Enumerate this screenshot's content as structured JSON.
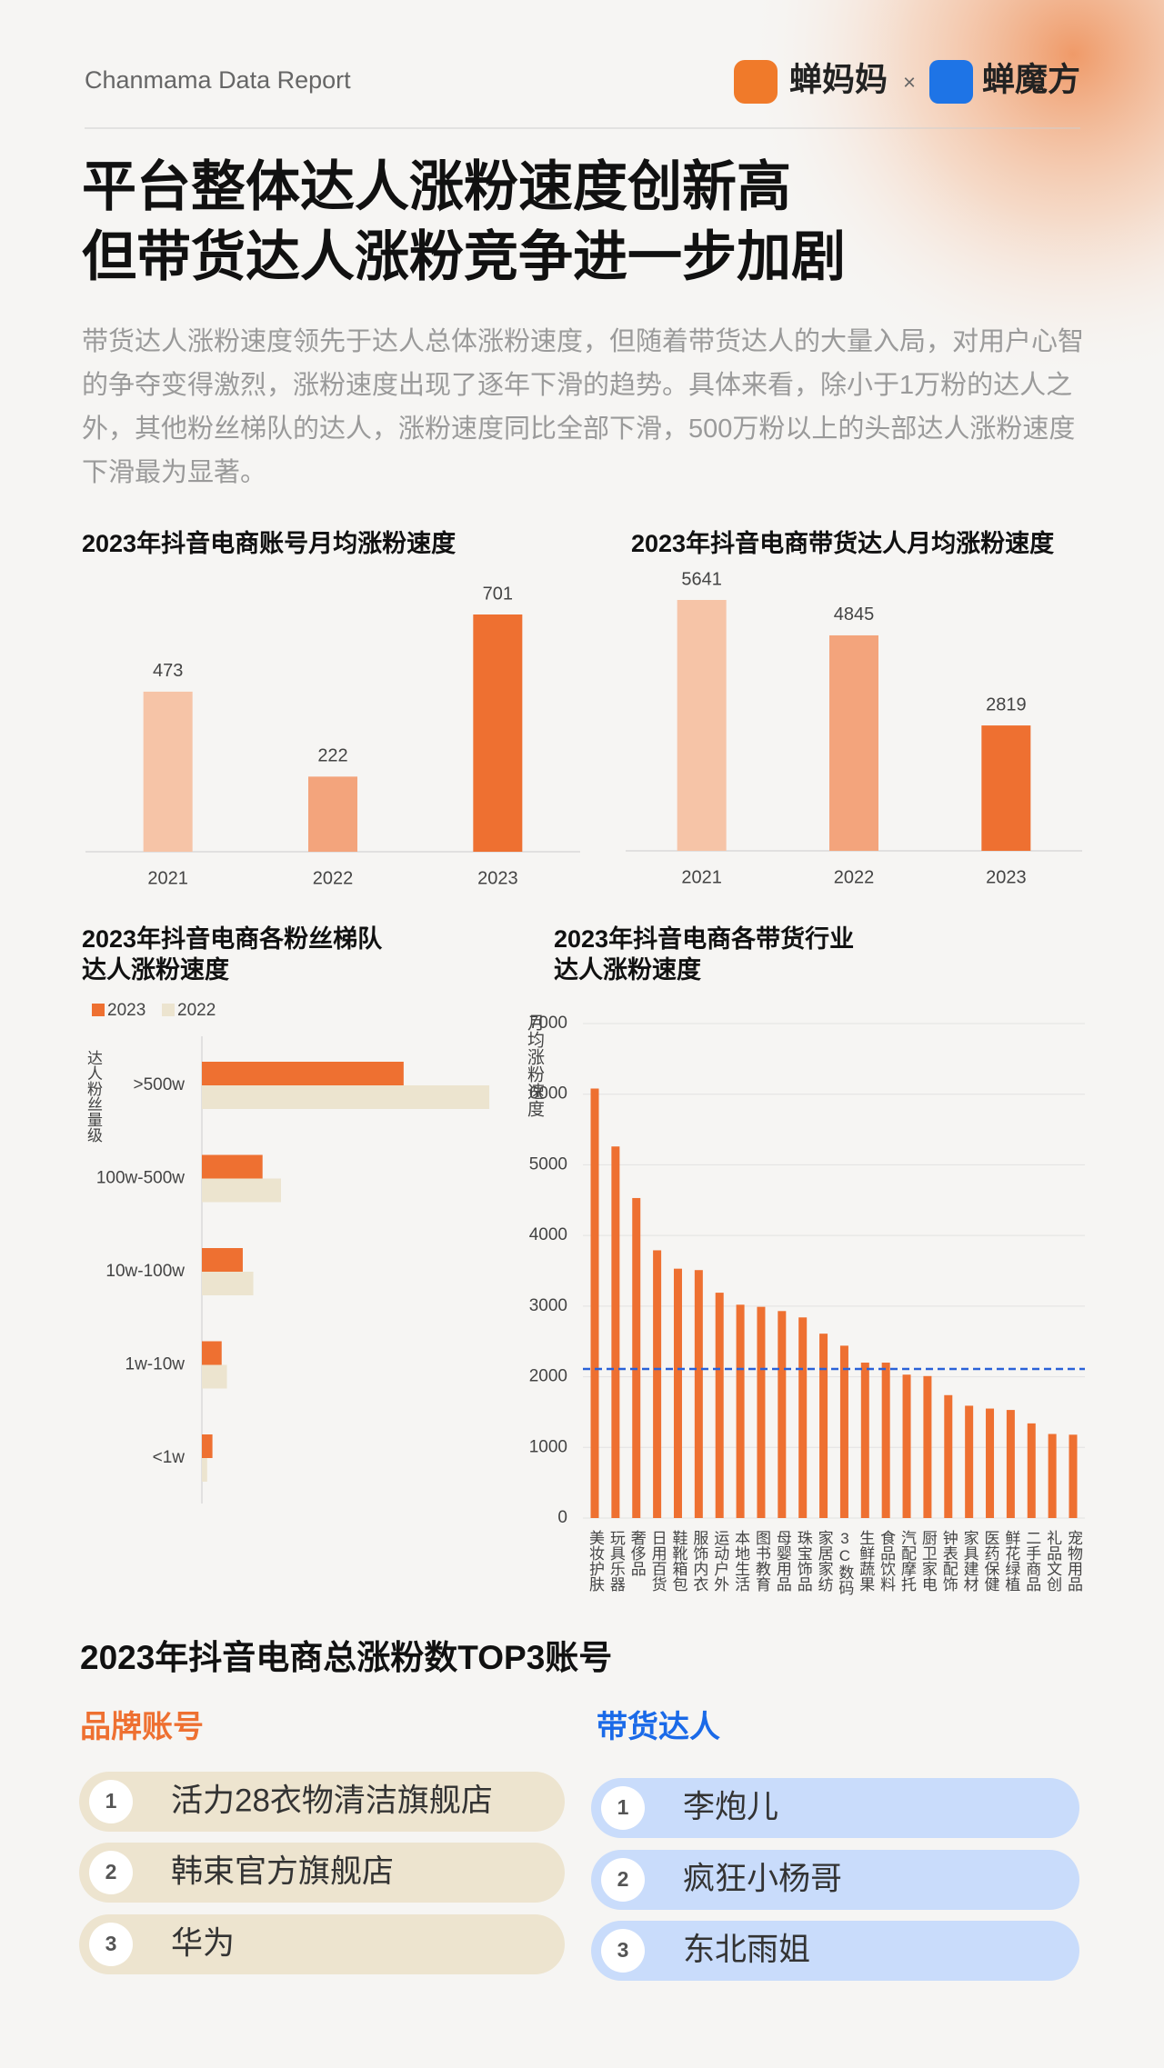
{
  "header": {
    "report": "Chanmama Data Report",
    "brand_a": "蝉妈妈",
    "separator": "×",
    "brand_b": "蝉魔方"
  },
  "title": [
    "平台整体达人涨粉速度创新高",
    "但带货达人涨粉竞争进一步加剧"
  ],
  "intro": "带货达人涨粉速度领先于达人总体涨粉速度，但随着带货达人的大量入局，对用户心智的争夺变得激烈，涨粉速度出现了逐年下滑的趋势。具体来看，除小于1万粉的达人之外，其他粉丝梯队的达人，涨粉速度同比全部下滑，500万粉以上的头部达人涨粉速度下滑最为显著。",
  "chart_data": [
    {
      "type": "bar",
      "title": "2023年抖音电商账号月均涨粉速度",
      "categories": [
        "2021",
        "2022",
        "2023"
      ],
      "values": [
        473,
        222,
        701
      ],
      "colors": [
        "#f6c4a7",
        "#f3a47c",
        "#ee7031"
      ]
    },
    {
      "type": "bar",
      "title": "2023年抖音电商带货达人月均涨粉速度",
      "categories": [
        "2021",
        "2022",
        "2023"
      ],
      "values": [
        5641,
        4845,
        2819
      ],
      "colors": [
        "#f6c4a7",
        "#f3a47c",
        "#ee7031"
      ]
    },
    {
      "type": "hbar",
      "title": [
        "2023年抖音电商各粉丝梯队",
        "达人涨粉速度"
      ],
      "y_label": "达人粉丝量级",
      "categories": [
        ">500w",
        "100w-500w",
        "10w-100w",
        "1w-10w",
        "<1w"
      ],
      "series": [
        {
          "name": "2023",
          "color": "#ee7031",
          "values": [
            153,
            46,
            31,
            15,
            8
          ]
        },
        {
          "name": "2022",
          "color": "#ece4cf",
          "values": [
            218,
            60,
            39,
            19,
            4
          ]
        }
      ],
      "xlim": [
        0,
        220
      ]
    },
    {
      "type": "column",
      "title": [
        "2023年抖音电商各带货行业",
        "达人涨粉速度"
      ],
      "y_label": "月均涨粉速度",
      "categories": [
        "美妆护肤",
        "玩具乐器",
        "奢侈品",
        "日用百货",
        "鞋靴箱包",
        "服饰内衣",
        "运动户外",
        "本地生活",
        "图书教育",
        "母婴用品",
        "珠宝饰品",
        "家居家纺",
        "3C数码",
        "生鲜蔬果",
        "食品饮料",
        "汽配摩托",
        "厨卫家电",
        "钟表配饰",
        "家具建材",
        "医药保健",
        "鲜花绿植",
        "二手商品",
        "礼品文创",
        "宠物用品"
      ],
      "values": [
        6080,
        5260,
        4530,
        3790,
        3530,
        3510,
        3190,
        3020,
        2990,
        2930,
        2840,
        2610,
        2440,
        2200,
        2200,
        2030,
        2010,
        1740,
        1590,
        1550,
        1530,
        1340,
        1190,
        1180
      ],
      "color": "#ee7031",
      "ylim": [
        0,
        7000
      ],
      "yticks": [
        0,
        1000,
        2000,
        3000,
        4000,
        5000,
        6000,
        7000
      ],
      "grid": true,
      "reference_line": {
        "value": 2110,
        "color": "#2a62d8",
        "style": "dashed"
      }
    }
  ],
  "top3": {
    "title": "2023年抖音电商总涨粉数TOP3账号",
    "groups": [
      {
        "name": "品牌账号",
        "color": "#ee7031",
        "pill": "#ede4cf",
        "items": [
          {
            "rank": 1,
            "name": "活力28衣物清洁旗舰店"
          },
          {
            "rank": 2,
            "name": "韩束官方旗舰店"
          },
          {
            "rank": 3,
            "name": "华为"
          }
        ]
      },
      {
        "name": "带货达人",
        "color": "#1a6ae8",
        "pill": "#c9dcfb",
        "items": [
          {
            "rank": 1,
            "name": "李炮儿"
          },
          {
            "rank": 2,
            "name": "疯狂小杨哥"
          },
          {
            "rank": 3,
            "name": "东北雨姐"
          }
        ]
      }
    ]
  }
}
